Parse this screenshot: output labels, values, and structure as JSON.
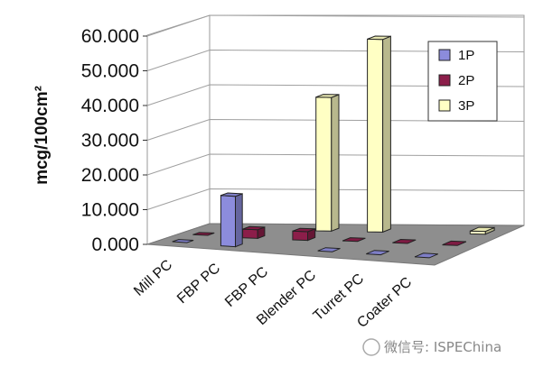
{
  "chart_data": {
    "type": "bar",
    "ylabel": "mcg/100cm²",
    "ylim": [
      0,
      60
    ],
    "y_ticks": [
      "0.000",
      "10.000",
      "20.000",
      "30.000",
      "40.000",
      "50.000",
      "60.000"
    ],
    "categories": [
      "Mill PC",
      "FBP PC",
      "FBP PC",
      "Blender PC",
      "Turret PC",
      "Coater PC"
    ],
    "series": [
      {
        "name": "1P",
        "color": "#8c8cdc",
        "values": [
          0.3,
          14.5,
          0,
          0.3,
          0.3,
          0.3
        ]
      },
      {
        "name": "2P",
        "color": "#8c1e4a",
        "values": [
          0.3,
          2.5,
          2.5,
          0.3,
          0.3,
          0.3
        ]
      },
      {
        "name": "3P",
        "color": "#ffffc4",
        "values": [
          0,
          0,
          38.5,
          55.5,
          0,
          0.8
        ]
      }
    ],
    "legend_position": "top-right",
    "grid": true
  },
  "watermark": "微信号: ISPEChina"
}
